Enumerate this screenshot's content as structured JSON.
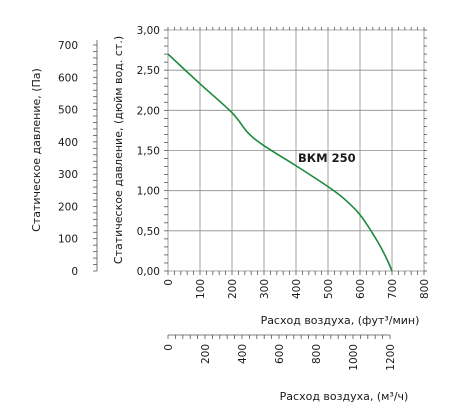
{
  "chart_data": {
    "type": "line",
    "axes": {
      "y_inch": {
        "label": "Статическое давление, (дюйм вод. ст.)",
        "range": [
          0,
          3
        ],
        "ticks": [
          "0,00",
          "0,50",
          "1,00",
          "1,50",
          "2,00",
          "2,50",
          "3,00"
        ],
        "tick_values": [
          0,
          0.5,
          1,
          1.5,
          2,
          2.5,
          3
        ]
      },
      "y_pa": {
        "label": "Статическое давление, (Па)",
        "ticks": [
          "0",
          "100",
          "200",
          "300",
          "400",
          "500",
          "600",
          "700"
        ],
        "tick_values": [
          0,
          100,
          200,
          300,
          400,
          500,
          600,
          700
        ]
      },
      "x_cfm": {
        "label": "Расход воздуха, (фут³/мин)",
        "range": [
          0,
          800
        ],
        "ticks": [
          "0",
          "100",
          "200",
          "300",
          "400",
          "500",
          "600",
          "700",
          "800"
        ],
        "tick_values": [
          0,
          100,
          200,
          300,
          400,
          500,
          600,
          700,
          800
        ]
      },
      "x_m3h": {
        "label": "Расход воздуха, (м³/ч)",
        "ticks": [
          "0",
          "200",
          "400",
          "600",
          "800",
          "1000",
          "1200"
        ],
        "tick_values": [
          0,
          200,
          400,
          600,
          800,
          1000,
          1200
        ]
      }
    },
    "grid": true,
    "series": [
      {
        "name": "ВКМ 250",
        "color": "#1a8a3a",
        "x": [
          0,
          100,
          200,
          250,
          300,
          400,
          500,
          550,
          600,
          650,
          680,
          700
        ],
        "y": [
          2.7,
          2.33,
          1.97,
          1.72,
          1.56,
          1.31,
          1.05,
          0.9,
          0.7,
          0.4,
          0.18,
          0.0
        ]
      }
    ]
  }
}
